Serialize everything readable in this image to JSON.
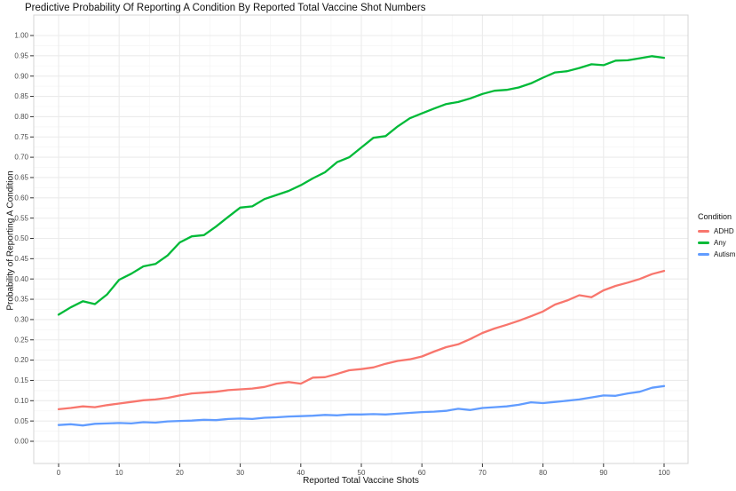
{
  "title": "Predictive Probability Of Reporting A Condition By Reported Total Vaccine Shot Numbers",
  "axes": {
    "x": {
      "label": "Reported Total Vaccine Shots",
      "ticks": [
        0,
        10,
        20,
        30,
        40,
        50,
        60,
        70,
        80,
        90,
        100
      ],
      "tick_labels": [
        "0",
        "10",
        "20",
        "30",
        "40",
        "50",
        "60",
        "70",
        "80",
        "90",
        "100"
      ],
      "range": [
        0,
        100
      ]
    },
    "y": {
      "label": "Probability of Reporting A Condition",
      "ticks": [
        0.0,
        0.05,
        0.1,
        0.15,
        0.2,
        0.25,
        0.3,
        0.35,
        0.4,
        0.45,
        0.5,
        0.55,
        0.6,
        0.65,
        0.7,
        0.75,
        0.8,
        0.85,
        0.9,
        0.95,
        1.0
      ],
      "tick_labels": [
        "0.00",
        "0.05",
        "0.10",
        "0.15",
        "0.20",
        "0.25",
        "0.30",
        "0.35",
        "0.40",
        "0.45",
        "0.50",
        "0.55",
        "0.60",
        "0.65",
        "0.70",
        "0.75",
        "0.80",
        "0.85",
        "0.90",
        "0.95",
        "1.00"
      ],
      "range": [
        0,
        1
      ]
    }
  },
  "legend": {
    "title": "Condition",
    "items": [
      {
        "label": "ADHD",
        "color": "#F8766D"
      },
      {
        "label": "Any",
        "color": "#00BA38"
      },
      {
        "label": "Autism",
        "color": "#619CFF"
      }
    ]
  },
  "colors": {
    "adhd": "#F8766D",
    "any": "#00BA38",
    "autism": "#619CFF",
    "grid_major": "#ebebeb",
    "grid_minor": "#f6f6f6",
    "panel_border": "#d4d4d4",
    "tick": "#333333",
    "tick_label": "#4d4d4d"
  },
  "chart_data": {
    "type": "line",
    "title": "Predictive Probability Of Reporting A Condition By Reported Total Vaccine Shot Numbers",
    "xlabel": "Reported Total Vaccine Shots",
    "ylabel": "Probability of Reporting A Condition",
    "xlim": [
      0,
      100
    ],
    "ylim": [
      0,
      1
    ],
    "grid": {
      "major_x_step": 10,
      "minor_x_step": 5,
      "major_y_step": 0.05,
      "minor_y_step": 0.025
    },
    "legend_position": "right",
    "x": [
      0,
      2,
      4,
      6,
      8,
      10,
      12,
      14,
      16,
      18,
      20,
      22,
      24,
      26,
      28,
      30,
      32,
      34,
      36,
      38,
      40,
      42,
      44,
      46,
      48,
      50,
      52,
      54,
      56,
      58,
      60,
      62,
      64,
      66,
      68,
      70,
      72,
      74,
      76,
      78,
      80,
      82,
      84,
      86,
      88,
      90,
      92,
      94,
      96,
      98,
      100
    ],
    "series": [
      {
        "name": "ADHD",
        "color": "#F8766D",
        "values": [
          0.079,
          0.082,
          0.086,
          0.084,
          0.089,
          0.093,
          0.097,
          0.101,
          0.103,
          0.107,
          0.113,
          0.118,
          0.12,
          0.122,
          0.126,
          0.128,
          0.13,
          0.134,
          0.142,
          0.146,
          0.142,
          0.157,
          0.158,
          0.166,
          0.175,
          0.178,
          0.182,
          0.191,
          0.198,
          0.202,
          0.209,
          0.221,
          0.232,
          0.239,
          0.252,
          0.267,
          0.278,
          0.287,
          0.297,
          0.308,
          0.32,
          0.337,
          0.347,
          0.36,
          0.355,
          0.372,
          0.383,
          0.391,
          0.4,
          0.412,
          0.42
        ]
      },
      {
        "name": "Any",
        "color": "#00BA38",
        "values": [
          0.312,
          0.33,
          0.345,
          0.338,
          0.362,
          0.398,
          0.413,
          0.431,
          0.437,
          0.458,
          0.49,
          0.505,
          0.508,
          0.529,
          0.553,
          0.576,
          0.579,
          0.597,
          0.607,
          0.617,
          0.631,
          0.648,
          0.663,
          0.688,
          0.7,
          0.724,
          0.748,
          0.752,
          0.776,
          0.796,
          0.808,
          0.82,
          0.831,
          0.836,
          0.845,
          0.856,
          0.864,
          0.866,
          0.872,
          0.882,
          0.896,
          0.909,
          0.912,
          0.92,
          0.929,
          0.927,
          0.938,
          0.939,
          0.944,
          0.949,
          0.945
        ]
      },
      {
        "name": "Autism",
        "color": "#619CFF",
        "values": [
          0.04,
          0.042,
          0.039,
          0.043,
          0.044,
          0.045,
          0.044,
          0.047,
          0.046,
          0.049,
          0.05,
          0.051,
          0.053,
          0.052,
          0.055,
          0.056,
          0.055,
          0.058,
          0.059,
          0.061,
          0.062,
          0.063,
          0.065,
          0.064,
          0.066,
          0.066,
          0.067,
          0.066,
          0.068,
          0.07,
          0.072,
          0.073,
          0.075,
          0.08,
          0.077,
          0.082,
          0.084,
          0.086,
          0.09,
          0.096,
          0.094,
          0.097,
          0.1,
          0.103,
          0.108,
          0.113,
          0.112,
          0.118,
          0.122,
          0.132,
          0.136
        ]
      }
    ]
  }
}
